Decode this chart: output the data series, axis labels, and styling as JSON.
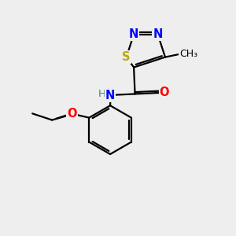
{
  "background_color": "#eeeeee",
  "bond_color": "#000000",
  "atom_colors": {
    "N": "#0000ff",
    "S": "#bbaa00",
    "O": "#ff0000",
    "C": "#000000",
    "H": "#4a8080"
  },
  "lw": 1.6,
  "fs": 9.5
}
